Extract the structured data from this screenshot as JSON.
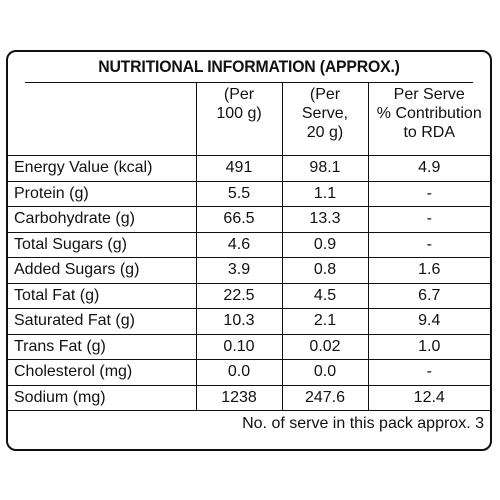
{
  "title": "NUTRITIONAL INFORMATION (APPROX.)",
  "headers": [
    [
      "(Per",
      "100 g)"
    ],
    [
      "(Per",
      "Serve,",
      "20 g)"
    ],
    [
      "Per Serve",
      "% Contribution",
      "to RDA"
    ]
  ],
  "rows": [
    {
      "label": "Energy Value (kcal)",
      "per100": "491",
      "perServe": "98.1",
      "rda": "4.9"
    },
    {
      "label": "Protein (g)",
      "per100": "5.5",
      "perServe": "1.1",
      "rda": "-"
    },
    {
      "label": "Carbohydrate (g)",
      "per100": "66.5",
      "perServe": "13.3",
      "rda": "-"
    },
    {
      "label": "Total Sugars (g)",
      "per100": "4.6",
      "perServe": "0.9",
      "rda": "-"
    },
    {
      "label": "Added Sugars (g)",
      "per100": "3.9",
      "perServe": "0.8",
      "rda": "1.6"
    },
    {
      "label": "Total Fat (g)",
      "per100": "22.5",
      "perServe": "4.5",
      "rda": "6.7"
    },
    {
      "label": "Saturated Fat (g)",
      "per100": "10.3",
      "perServe": "2.1",
      "rda": "9.4"
    },
    {
      "label": "Trans Fat (g)",
      "per100": "0.10",
      "perServe": "0.02",
      "rda": "1.0"
    },
    {
      "label": "Cholesterol (mg)",
      "per100": "0.0",
      "perServe": "0.0",
      "rda": "-"
    },
    {
      "label": "Sodium (mg)",
      "per100": "1238",
      "perServe": "247.6",
      "rda": "12.4"
    }
  ],
  "footer": "No. of serve in this pack approx. 3"
}
